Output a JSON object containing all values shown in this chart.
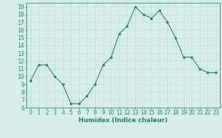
{
  "x": [
    0,
    1,
    2,
    3,
    4,
    5,
    6,
    7,
    8,
    9,
    10,
    11,
    12,
    13,
    14,
    15,
    16,
    17,
    18,
    19,
    20,
    21,
    22,
    23
  ],
  "y": [
    9.5,
    11.5,
    11.5,
    10.0,
    9.0,
    6.5,
    6.5,
    7.5,
    9.0,
    11.5,
    12.5,
    15.5,
    16.5,
    19.0,
    18.0,
    17.5,
    18.5,
    17.0,
    15.0,
    12.5,
    12.5,
    11.0,
    10.5,
    10.5
  ],
  "xlim": [
    -0.5,
    23.5
  ],
  "ylim": [
    6,
    19.5
  ],
  "yticks": [
    6,
    7,
    8,
    9,
    10,
    11,
    12,
    13,
    14,
    15,
    16,
    17,
    18,
    19
  ],
  "xticks": [
    0,
    1,
    2,
    3,
    4,
    5,
    6,
    7,
    8,
    9,
    10,
    11,
    12,
    13,
    14,
    15,
    16,
    17,
    18,
    19,
    20,
    21,
    22,
    23
  ],
  "xlabel": "Humidex (Indice chaleur)",
  "line_color": "#2d7d6e",
  "bg_color": "#d6eeeb",
  "grid_color": "#c0dbd8",
  "tick_fontsize": 5.5,
  "xlabel_fontsize": 6.5,
  "fig_width": 3.2,
  "fig_height": 2.0,
  "dpi": 100
}
